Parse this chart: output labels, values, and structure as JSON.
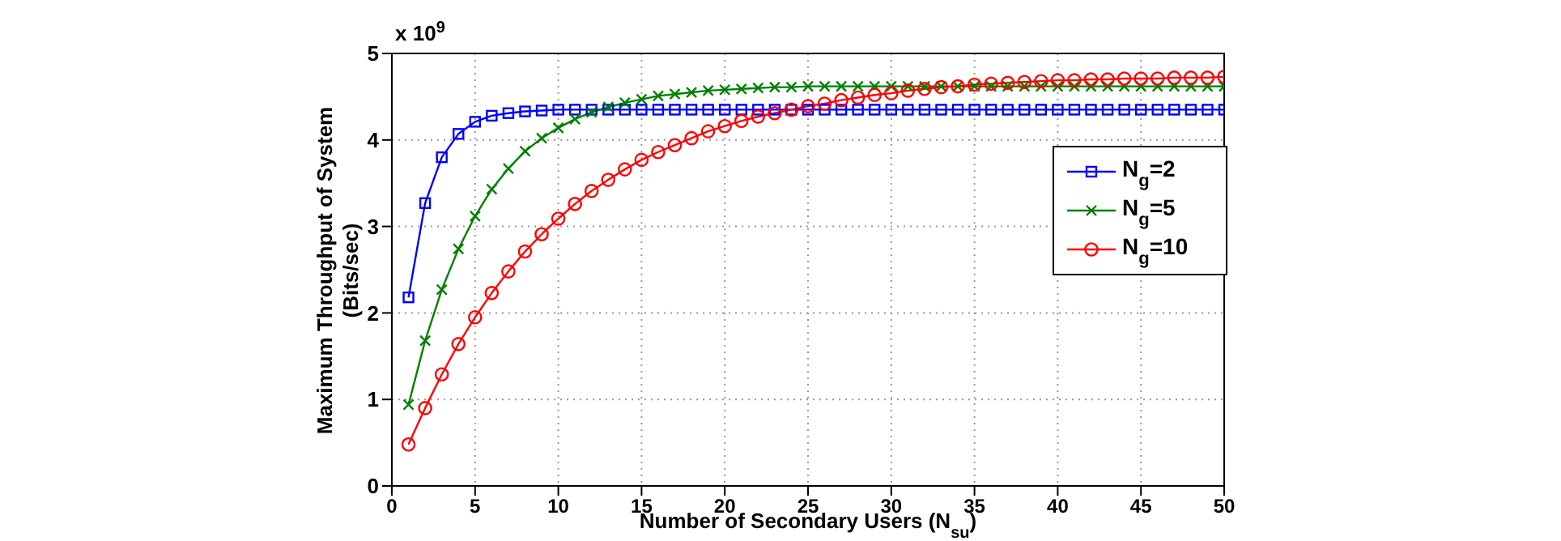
{
  "chart_data": {
    "type": "line",
    "xlabel": "Number of Secondary Users (N$_{su}$)",
    "ylabel": "Maximum Throughput of System\n(Bits/sec)",
    "annotations": [
      "x 10$^{9}$"
    ],
    "x": [
      1,
      2,
      3,
      4,
      5,
      6,
      7,
      8,
      9,
      10,
      11,
      12,
      13,
      14,
      15,
      16,
      17,
      18,
      19,
      20,
      21,
      22,
      23,
      24,
      25,
      26,
      27,
      28,
      29,
      30,
      31,
      32,
      33,
      34,
      35,
      36,
      37,
      38,
      39,
      40,
      41,
      42,
      43,
      44,
      45,
      46,
      47,
      48,
      49,
      50
    ],
    "series": [
      {
        "name": "N$_{g}$=2",
        "color": "#0000ff",
        "marker": "square",
        "values": [
          2.18,
          3.27,
          3.8,
          4.07,
          4.21,
          4.28,
          4.31,
          4.33,
          4.34,
          4.35,
          4.35,
          4.35,
          4.35,
          4.35,
          4.35,
          4.35,
          4.35,
          4.35,
          4.35,
          4.35,
          4.35,
          4.35,
          4.35,
          4.35,
          4.35,
          4.35,
          4.35,
          4.35,
          4.35,
          4.35,
          4.35,
          4.35,
          4.35,
          4.35,
          4.35,
          4.35,
          4.35,
          4.35,
          4.35,
          4.35,
          4.35,
          4.35,
          4.35,
          4.35,
          4.35,
          4.35,
          4.35,
          4.35,
          4.35,
          4.35
        ]
      },
      {
        "name": "N$_{g}$=5",
        "color": "#008000",
        "marker": "cross",
        "values": [
          0.94,
          1.68,
          2.27,
          2.74,
          3.12,
          3.43,
          3.67,
          3.87,
          4.02,
          4.14,
          4.24,
          4.32,
          4.38,
          4.43,
          4.47,
          4.51,
          4.53,
          4.55,
          4.57,
          4.58,
          4.59,
          4.6,
          4.61,
          4.61,
          4.62,
          4.62,
          4.62,
          4.62,
          4.62,
          4.62,
          4.62,
          4.62,
          4.62,
          4.62,
          4.62,
          4.62,
          4.62,
          4.62,
          4.62,
          4.62,
          4.62,
          4.62,
          4.62,
          4.62,
          4.62,
          4.62,
          4.62,
          4.62,
          4.62,
          4.62
        ]
      },
      {
        "name": "N$_{g}$=10",
        "color": "#ff0000",
        "marker": "circle",
        "values": [
          0.48,
          0.9,
          1.29,
          1.64,
          1.95,
          2.23,
          2.48,
          2.71,
          2.91,
          3.09,
          3.26,
          3.41,
          3.54,
          3.66,
          3.77,
          3.86,
          3.94,
          4.02,
          4.1,
          4.16,
          4.22,
          4.27,
          4.31,
          4.35,
          4.39,
          4.42,
          4.46,
          4.49,
          4.52,
          4.54,
          4.57,
          4.59,
          4.61,
          4.62,
          4.64,
          4.65,
          4.66,
          4.67,
          4.68,
          4.69,
          4.69,
          4.7,
          4.7,
          4.71,
          4.71,
          4.71,
          4.72,
          4.72,
          4.72,
          4.73
        ]
      }
    ],
    "xlim": [
      0,
      50
    ],
    "xticks": [
      0,
      5,
      10,
      15,
      20,
      25,
      30,
      35,
      40,
      45,
      50
    ],
    "ylim": [
      0,
      5
    ],
    "yticks": [
      0,
      1,
      2,
      3,
      4,
      5
    ],
    "grid": true,
    "legend": "right",
    "line_style": "solid"
  }
}
